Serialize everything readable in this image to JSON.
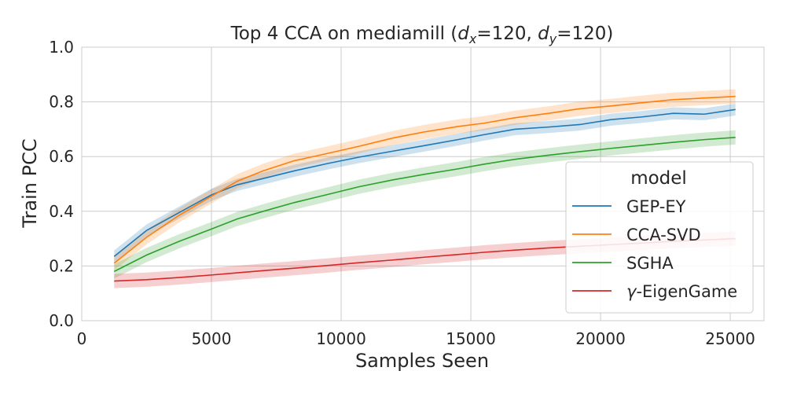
{
  "chart_data": {
    "type": "line",
    "title": {
      "prefix": "Top 4 CCA on mediamill (",
      "var1": "d",
      "sub1": "x",
      "eq1": "=120, ",
      "var2": "d",
      "sub2": "y",
      "eq2": "=120)"
    },
    "xlabel": "Samples Seen",
    "ylabel": "Train PCC",
    "xlim": [
      0,
      26300
    ],
    "ylim": [
      0,
      1.0
    ],
    "xticks": [
      0,
      5000,
      10000,
      15000,
      20000,
      25000
    ],
    "yticks": [
      0.0,
      0.2,
      0.4,
      0.6,
      0.8,
      1.0
    ],
    "ytick_labels": [
      "0.0",
      "0.2",
      "0.4",
      "0.6",
      "0.8",
      "1.0"
    ],
    "grid": true,
    "legend": {
      "title": "model",
      "placement": "right"
    },
    "x": [
      1250,
      2500,
      3750,
      5000,
      6000,
      7000,
      8200,
      9500,
      10700,
      12000,
      13200,
      14500,
      15500,
      16700,
      18000,
      19200,
      20400,
      21600,
      22800,
      24000,
      25200
    ],
    "series": [
      {
        "name": "GEP-EY",
        "color": "#1f77b4",
        "values": [
          0.235,
          0.33,
          0.395,
          0.46,
          0.497,
          0.52,
          0.548,
          0.575,
          0.598,
          0.62,
          0.64,
          0.662,
          0.68,
          0.7,
          0.708,
          0.717,
          0.735,
          0.745,
          0.758,
          0.755,
          0.772
        ],
        "band": 0.022
      },
      {
        "name": "CCA-SVD",
        "color": "#ff7f0e",
        "values": [
          0.21,
          0.305,
          0.385,
          0.455,
          0.51,
          0.548,
          0.585,
          0.612,
          0.638,
          0.668,
          0.69,
          0.71,
          0.722,
          0.742,
          0.758,
          0.775,
          0.785,
          0.797,
          0.808,
          0.814,
          0.82
        ],
        "band": 0.026
      },
      {
        "name": "SGHA",
        "color": "#2ca02c",
        "values": [
          0.18,
          0.24,
          0.29,
          0.335,
          0.372,
          0.4,
          0.432,
          0.462,
          0.49,
          0.515,
          0.535,
          0.555,
          0.572,
          0.59,
          0.605,
          0.618,
          0.63,
          0.641,
          0.652,
          0.662,
          0.67
        ],
        "band": 0.026
      },
      {
        "name": "-EigenGame",
        "name_prefix": "γ",
        "color": "#d62728",
        "values": [
          0.145,
          0.15,
          0.158,
          0.167,
          0.175,
          0.183,
          0.192,
          0.202,
          0.212,
          0.222,
          0.232,
          0.242,
          0.25,
          0.258,
          0.266,
          0.272,
          0.278,
          0.284,
          0.29,
          0.295,
          0.3
        ],
        "band": 0.026
      }
    ]
  }
}
